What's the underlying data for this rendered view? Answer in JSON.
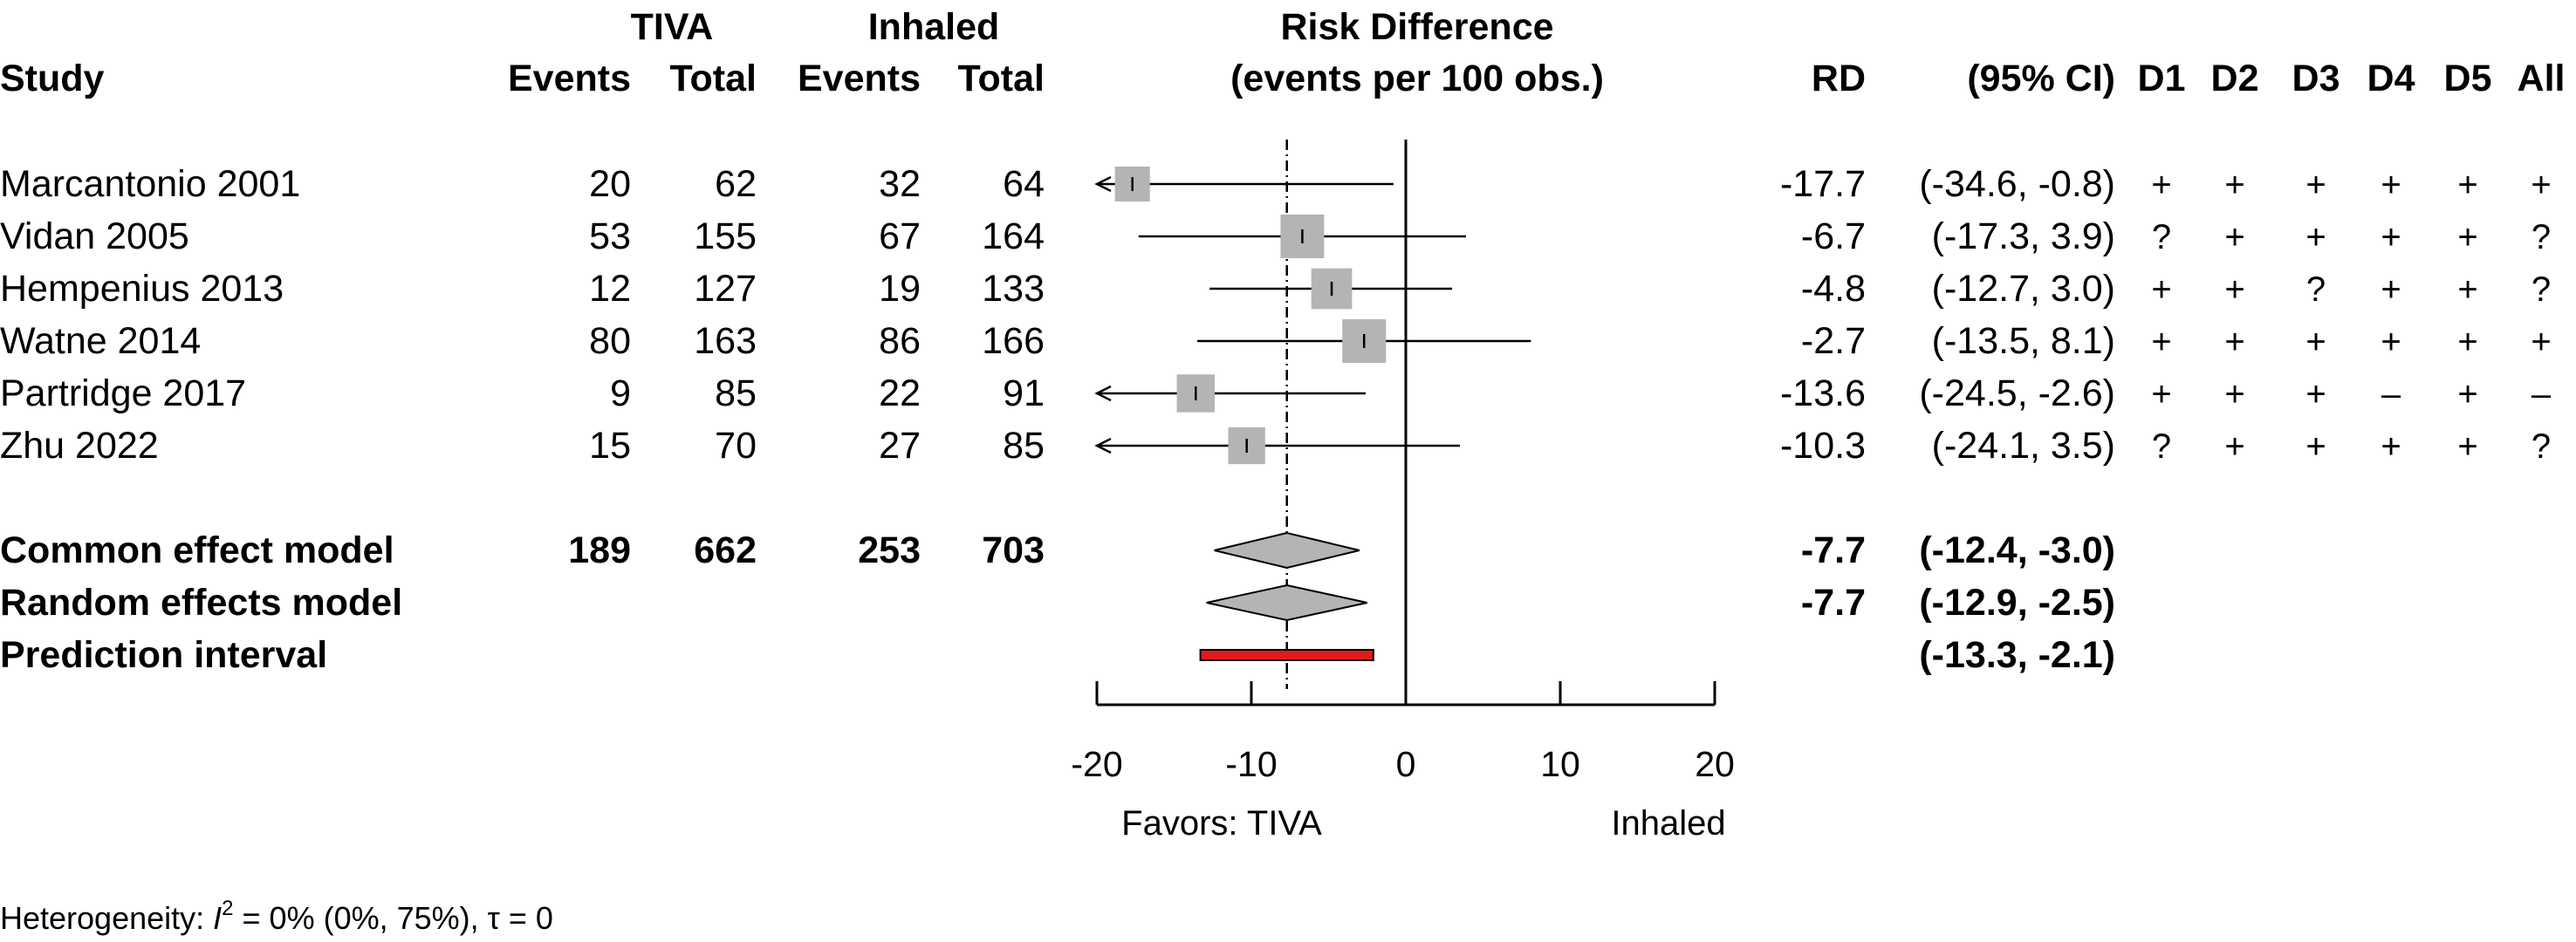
{
  "headers": {
    "study": "Study",
    "group1": "TIVA",
    "group2": "Inhaled",
    "events": "Events",
    "total": "Total",
    "rd_title": "Risk Difference",
    "rd_subtitle": "(events per 100 obs.)",
    "rd": "RD",
    "ci": "(95% CI)",
    "domains": [
      "D1",
      "D2",
      "D3",
      "D4",
      "D5",
      "All"
    ]
  },
  "chart_data": {
    "type": "forest",
    "xlim": [
      -20,
      20
    ],
    "xticks": [
      -20,
      -10,
      0,
      10,
      20
    ],
    "xtick_labels": [
      "-20",
      "-10",
      "0",
      "10",
      "20"
    ],
    "reference_line": 0,
    "pooled_estimate_line": -7.7,
    "favors_left": "Favors: TIVA",
    "favors_right": "Inhaled",
    "studies": [
      {
        "name": "Marcantonio 2001",
        "e1": "20",
        "n1": "62",
        "e2": "32",
        "n2": "64",
        "rd": -17.7,
        "lo": -34.6,
        "hi": -0.8,
        "weight": 0.55,
        "rd_text": "-17.7",
        "ci_text": "(-34.6, -0.8)",
        "rob": [
          "+",
          "+",
          "+",
          "+",
          "+",
          "+"
        ]
      },
      {
        "name": "Vidan 2005",
        "e1": "53",
        "n1": "155",
        "e2": "67",
        "n2": "164",
        "rd": -6.7,
        "lo": -17.3,
        "hi": 3.9,
        "weight": 1.0,
        "rd_text": "-6.7",
        "ci_text": "(-17.3, 3.9)",
        "rob": [
          "?",
          "+",
          "+",
          "+",
          "+",
          "?"
        ]
      },
      {
        "name": "Hempenius 2013",
        "e1": "12",
        "n1": "127",
        "e2": "19",
        "n2": "133",
        "rd": -4.8,
        "lo": -12.7,
        "hi": 3.0,
        "weight": 0.85,
        "rd_text": "-4.8",
        "ci_text": "(-12.7, 3.0)",
        "rob": [
          "+",
          "+",
          "?",
          "+",
          "+",
          "?"
        ]
      },
      {
        "name": "Watne 2014",
        "e1": "80",
        "n1": "163",
        "e2": "86",
        "n2": "166",
        "rd": -2.7,
        "lo": -13.5,
        "hi": 8.1,
        "weight": 1.0,
        "rd_text": "-2.7",
        "ci_text": "(-13.5, 8.1)",
        "rob": [
          "+",
          "+",
          "+",
          "+",
          "+",
          "+"
        ]
      },
      {
        "name": "Partridge 2017",
        "e1": "9",
        "n1": "85",
        "e2": "22",
        "n2": "91",
        "rd": -13.6,
        "lo": -24.5,
        "hi": -2.6,
        "weight": 0.7,
        "rd_text": "-13.6",
        "ci_text": "(-24.5, -2.6)",
        "rob": [
          "+",
          "+",
          "+",
          "–",
          "+",
          "–"
        ]
      },
      {
        "name": "Zhu 2022",
        "e1": "15",
        "n1": "70",
        "e2": "27",
        "n2": "85",
        "rd": -10.3,
        "lo": -24.1,
        "hi": 3.5,
        "weight": 0.65,
        "rd_text": "-10.3",
        "ci_text": "(-24.1, 3.5)",
        "rob": [
          "?",
          "+",
          "+",
          "+",
          "+",
          "?"
        ]
      }
    ],
    "common": {
      "name": "Common effect model",
      "e1": "189",
      "n1": "662",
      "e2": "253",
      "n2": "703",
      "rd": -7.7,
      "lo": -12.4,
      "hi": -3.0,
      "rd_text": "-7.7",
      "ci_text": "(-12.4, -3.0)"
    },
    "random": {
      "name": "Random effects model",
      "rd": -7.7,
      "lo": -12.9,
      "hi": -2.5,
      "rd_text": "-7.7",
      "ci_text": "(-12.9, -2.5)"
    },
    "prediction": {
      "name": "Prediction interval",
      "lo": -13.3,
      "hi": -2.1,
      "ci_text": "(-13.3, -2.1)"
    },
    "heterogeneity": {
      "prefix": "Heterogeneity: ",
      "i2_symbol": "I",
      "i2_exp": "2",
      "i2_value": " = 0% (0%, 75%), ",
      "tau_symbol": "τ",
      "tau_value": " = 0"
    }
  },
  "colors": {
    "square": "#b4b4b4",
    "diamond": "#b4b4b4",
    "prediction": "#e01b1b",
    "line": "#000000"
  }
}
